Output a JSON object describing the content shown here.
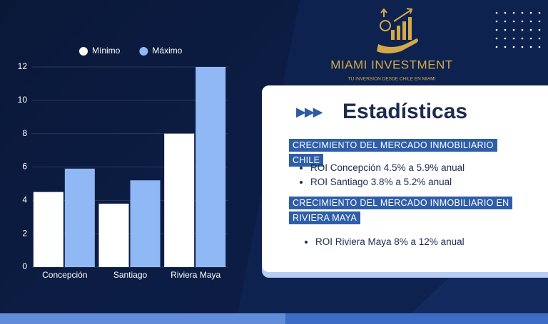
{
  "chart_data": {
    "type": "bar",
    "categories": [
      "Concepción",
      "Santiago",
      "Riviera Maya"
    ],
    "series": [
      {
        "name": "Mínimo",
        "color": "#ffffff",
        "values": [
          4.5,
          3.8,
          8
        ]
      },
      {
        "name": "Máximo",
        "color": "#8fb8f5",
        "values": [
          5.9,
          5.2,
          12
        ]
      }
    ],
    "ylim": [
      0,
      12
    ],
    "yticks": [
      0,
      2,
      4,
      6,
      8,
      10,
      12
    ],
    "grid": true,
    "legend": "top"
  },
  "brand": {
    "name": "MIAMI INVESTMENT",
    "tagline": "TU INVERSION DESDE CHILE EN MIAMI"
  },
  "panel": {
    "title": "Estadísticas",
    "sections": [
      {
        "heading": "CRECIMIENTO DEL MERCADO INMOBILIARIO CHILE",
        "items": [
          "ROI Concepción 4.5% a 5.9% anual",
          "ROI Santiago 3.8% a 5.2% anual"
        ]
      },
      {
        "heading": "CRECIMIENTO DEL MERCADO INMOBILIARIO EN RIVIERA MAYA",
        "items": [
          "ROI Riviera Maya 8% a 12% anual"
        ]
      }
    ]
  }
}
